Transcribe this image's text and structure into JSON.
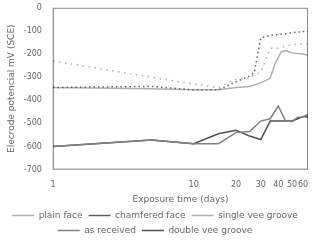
{
  "chart_data": {
    "type": "line",
    "xlabel": "Exposure time (days)",
    "ylabel": "Elecrode potencial mV (SCE)",
    "log": "x",
    "xlim": [
      1,
      65
    ],
    "ylim": [
      -700,
      0
    ],
    "xticks": [
      1,
      10,
      20,
      30,
      40,
      50,
      60
    ],
    "yticks": [
      0,
      -100,
      -200,
      -300,
      -400,
      -500,
      -600,
      -700
    ],
    "grid": false,
    "legend": "bottom",
    "series": [
      {
        "name": "plain face",
        "color": "#b0b0b0",
        "line_style": "loosely dotted",
        "x": [
          1,
          5,
          10,
          15,
          20,
          25,
          27,
          30,
          35,
          40,
          45,
          50,
          55,
          60,
          65
        ],
        "values": [
          -230,
          -300,
          -330,
          -345,
          -310,
          -305,
          -290,
          -280,
          -175,
          -175,
          -165,
          -160,
          -158,
          -155,
          -155
        ]
      },
      {
        "name": "chamfered face",
        "color": "#606060",
        "line_style": "dotted",
        "x": [
          1,
          5,
          10,
          15,
          20,
          25,
          27,
          30,
          35,
          40,
          45,
          50,
          55,
          60,
          65
        ],
        "values": [
          -345,
          -340,
          -355,
          -355,
          -320,
          -295,
          -280,
          -130,
          -120,
          -115,
          -112,
          -108,
          -105,
          -103,
          -102
        ]
      },
      {
        "name": "single vee groove",
        "color": "#b0b0b0",
        "line_style": "solid",
        "x": [
          1,
          5,
          10,
          15,
          20,
          25,
          30,
          35,
          38,
          42,
          45,
          50,
          55,
          60,
          65
        ],
        "values": [
          -345,
          -350,
          -355,
          -355,
          -345,
          -340,
          -325,
          -305,
          -240,
          -190,
          -185,
          -195,
          -198,
          -200,
          -205
        ]
      },
      {
        "name": "as received",
        "color": "#808080",
        "line_style": "solid",
        "x": [
          1,
          5,
          10,
          15,
          20,
          25,
          30,
          35,
          40,
          45,
          50,
          55,
          60,
          65
        ],
        "values": [
          -600,
          -572,
          -588,
          -588,
          -540,
          -535,
          -490,
          -480,
          -425,
          -490,
          -492,
          -473,
          -472,
          -460
        ]
      },
      {
        "name": "double vee groove",
        "color": "#505050",
        "line_style": "solid",
        "x": [
          1,
          5,
          10,
          15,
          20,
          25,
          30,
          35,
          40,
          45,
          50,
          55,
          60,
          65
        ],
        "values": [
          -600,
          -572,
          -588,
          -545,
          -530,
          -555,
          -570,
          -490,
          -490,
          -490,
          -490,
          -480,
          -470,
          -473
        ]
      }
    ]
  }
}
